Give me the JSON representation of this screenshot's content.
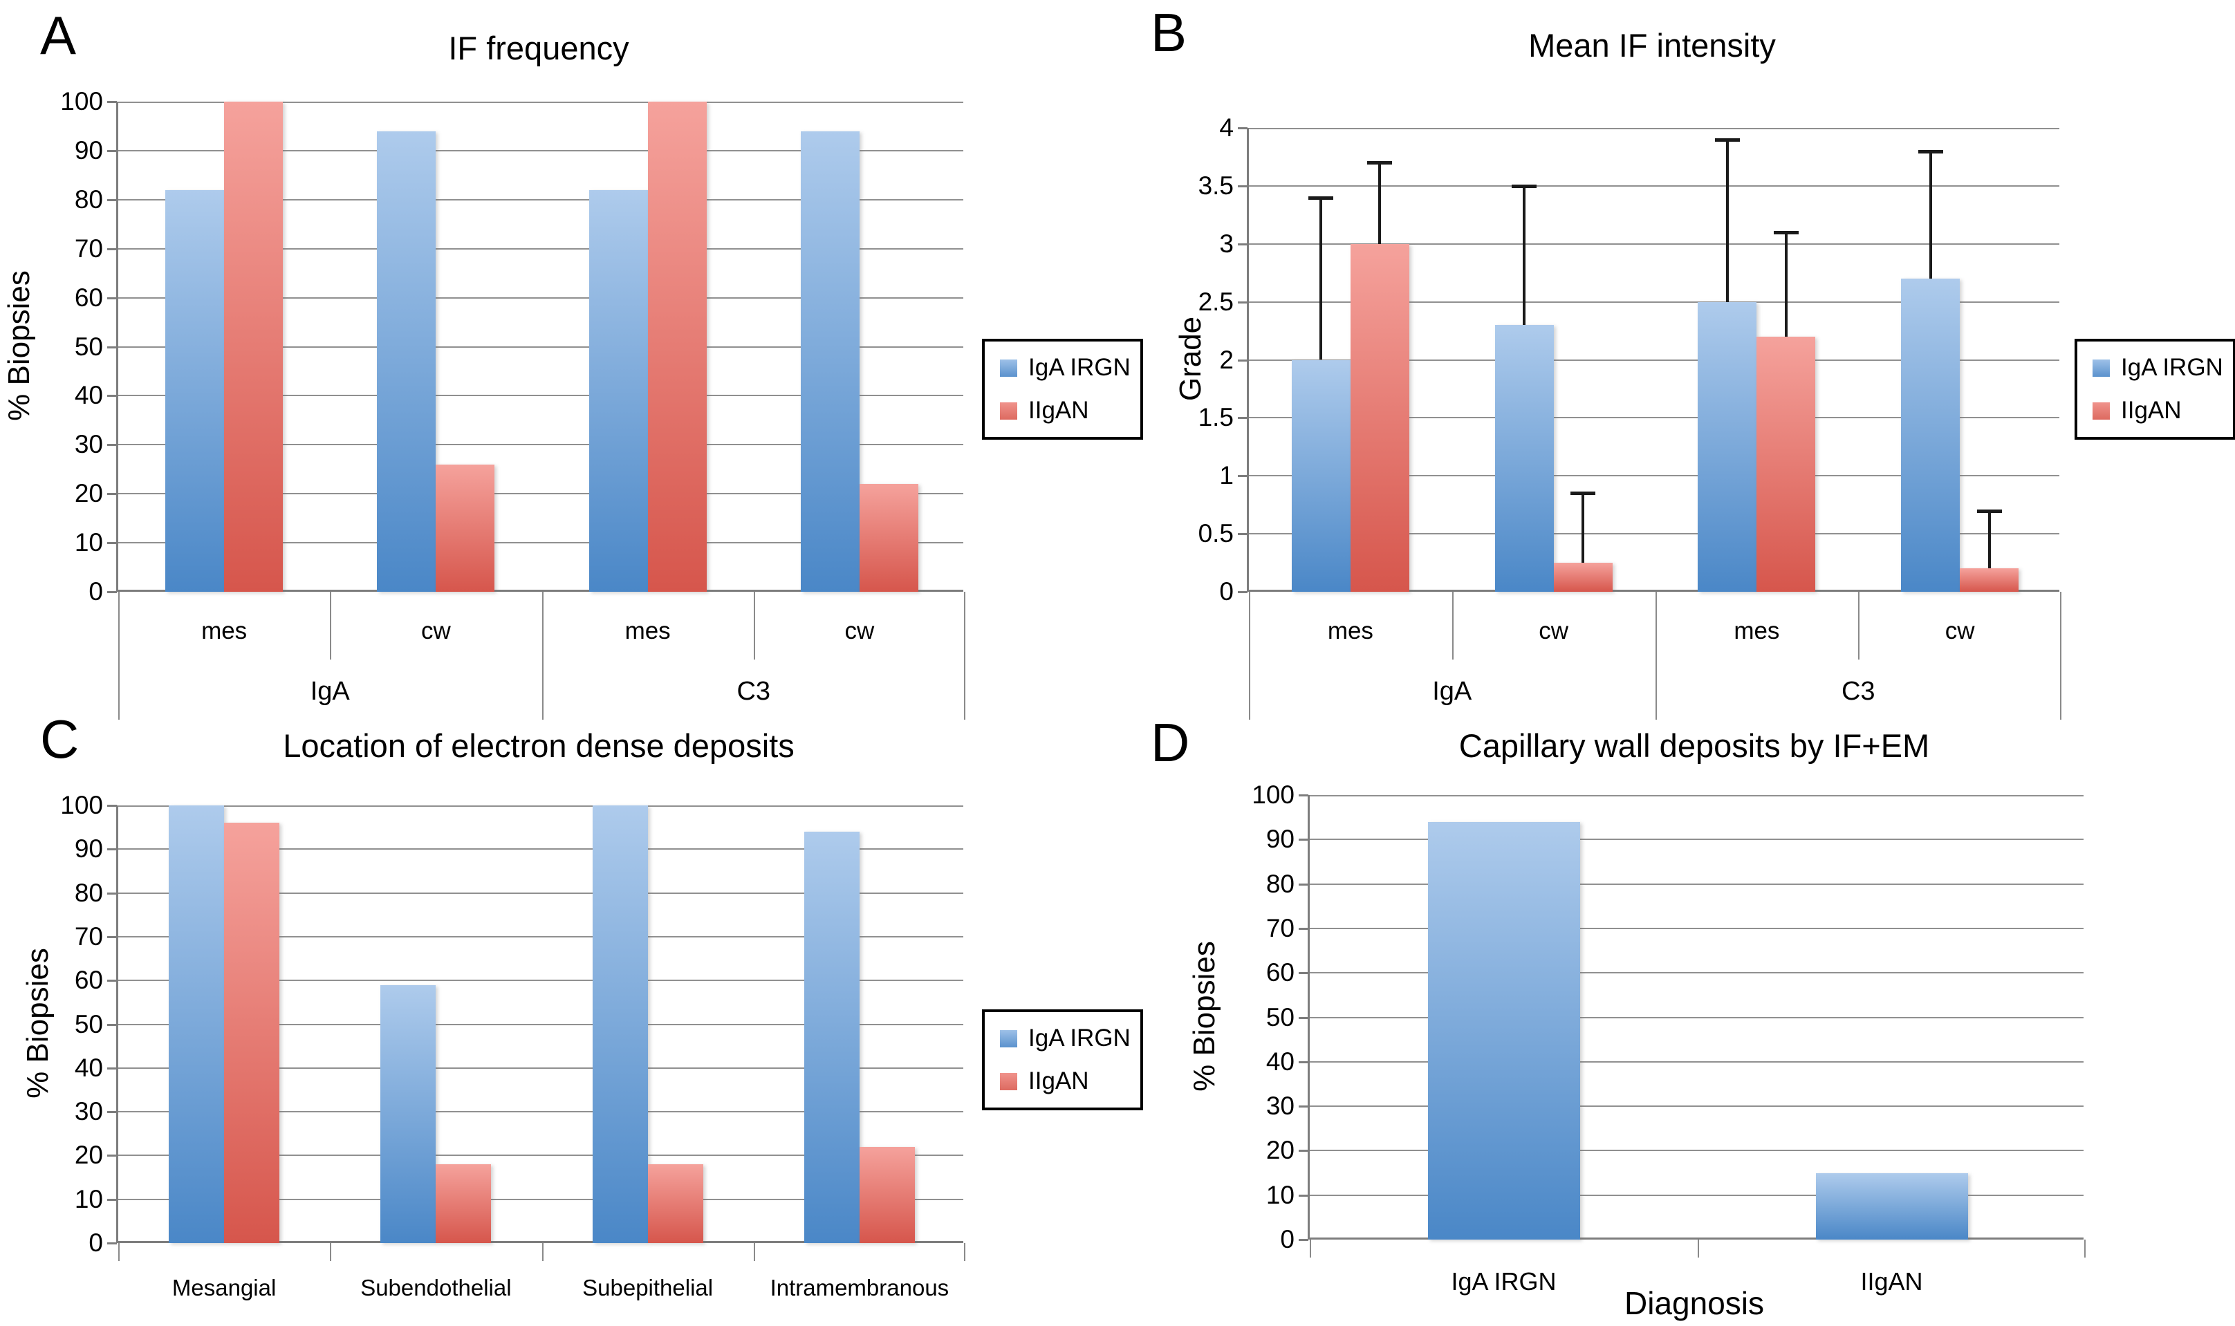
{
  "figure": {
    "background": "#ffffff",
    "panel_letters": [
      "A",
      "B",
      "C",
      "D"
    ]
  },
  "colors": {
    "series_blue_top": "#aecbec",
    "series_blue_bottom": "#4a87c7",
    "series_red_top": "#f5a29c",
    "series_red_bottom": "#d6564c",
    "gridline": "#909090",
    "axis": "#7d7d7d",
    "error_bar": "#1a1a1a",
    "legend_border": "#000000",
    "text": "#000000"
  },
  "legend": {
    "items": [
      {
        "label": "IgA IRGN",
        "color_key": "blue"
      },
      {
        "label": "IIgAN",
        "color_key": "red"
      }
    ]
  },
  "chart_data": [
    {
      "panel": "A",
      "type": "bar",
      "title": "IF frequency",
      "ylabel": "% Biopsies",
      "xlabel": "",
      "ylim": [
        0,
        100
      ],
      "ytick_step": 10,
      "grid": true,
      "legend_visible": true,
      "legend_position": "right",
      "group_axis": {
        "groups": [
          {
            "label": "IgA"
          },
          {
            "label": "C3"
          }
        ],
        "subcategories": [
          "mes",
          "cw",
          "mes",
          "cw"
        ]
      },
      "categories": [
        "IgA mes",
        "IgA cw",
        "C3 mes",
        "C3 cw"
      ],
      "series": [
        {
          "name": "IgA IRGN",
          "color_key": "blue",
          "values": [
            82,
            94,
            82,
            94
          ]
        },
        {
          "name": "IIgAN",
          "color_key": "red",
          "values": [
            100,
            26,
            100,
            22
          ]
        }
      ]
    },
    {
      "panel": "B",
      "type": "bar",
      "title": "Mean IF intensity",
      "ylabel": "Grade",
      "xlabel": "",
      "ylim": [
        0,
        4
      ],
      "ytick_step": 0.5,
      "grid": true,
      "legend_visible": true,
      "legend_position": "right",
      "group_axis": {
        "groups": [
          {
            "label": "IgA"
          },
          {
            "label": "C3"
          }
        ],
        "subcategories": [
          "mes",
          "cw",
          "mes",
          "cw"
        ]
      },
      "categories": [
        "IgA mes",
        "IgA cw",
        "C3 mes",
        "C3 cw"
      ],
      "series": [
        {
          "name": "IgA IRGN",
          "color_key": "blue",
          "values": [
            2.0,
            2.3,
            2.5,
            2.7
          ],
          "error_top": [
            3.4,
            3.5,
            3.9,
            3.8
          ]
        },
        {
          "name": "IIgAN",
          "color_key": "red",
          "values": [
            3.0,
            0.25,
            2.2,
            0.2
          ],
          "error_top": [
            3.7,
            0.85,
            3.1,
            0.7
          ]
        }
      ]
    },
    {
      "panel": "C",
      "type": "bar",
      "title": "Location of electron dense deposits",
      "ylabel": "% Biopsies",
      "xlabel": "",
      "ylim": [
        0,
        100
      ],
      "ytick_step": 10,
      "grid": true,
      "legend_visible": true,
      "legend_position": "right",
      "categories": [
        "Mesangial",
        "Subendothelial",
        "Subepithelial",
        "Intramembranous"
      ],
      "series": [
        {
          "name": "IgA IRGN",
          "color_key": "blue",
          "values": [
            100,
            59,
            100,
            94
          ]
        },
        {
          "name": "IIgAN",
          "color_key": "red",
          "values": [
            96,
            18,
            18,
            22
          ]
        }
      ]
    },
    {
      "panel": "D",
      "type": "bar",
      "title": "Capillary wall deposits by IF+EM",
      "ylabel": "% Biopsies",
      "xlabel": "Diagnosis",
      "ylim": [
        0,
        100
      ],
      "ytick_step": 10,
      "grid": true,
      "legend_visible": false,
      "categories": [
        "IgA IRGN",
        "IIgAN"
      ],
      "series": [
        {
          "name": "IgA IRGN",
          "color_key": "blue",
          "values": [
            94,
            15
          ]
        }
      ]
    }
  ]
}
